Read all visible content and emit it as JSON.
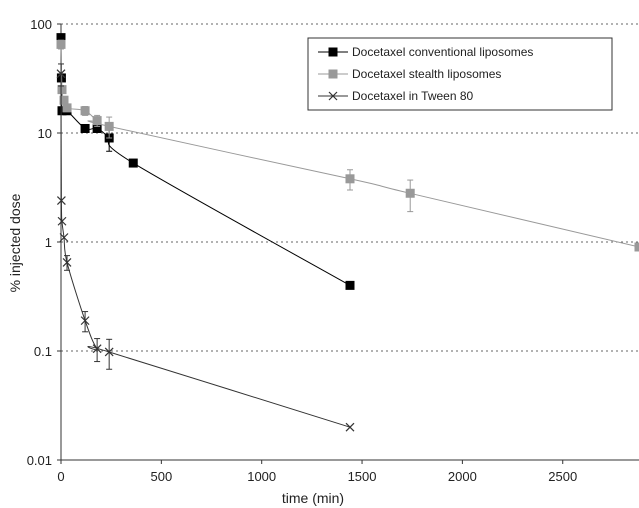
{
  "chart_data": {
    "type": "scatter",
    "xlabel": "time (min)",
    "ylabel": "% injected dose",
    "xlim": [
      0,
      2880
    ],
    "ylim": [
      0.01,
      100
    ],
    "y_scale": "log",
    "x_ticks": [
      "0",
      "500",
      "1000",
      "1500",
      "2000",
      "2500"
    ],
    "x_tick_values": [
      0,
      500,
      1000,
      1500,
      2000,
      2500
    ],
    "y_ticks": [
      "0.01",
      "0.1",
      "1",
      "10",
      "100"
    ],
    "y_tick_values": [
      0.01,
      0.1,
      1,
      10,
      100
    ],
    "grid": "dotted horizontal lines at 0.1, 1, 10 and 100",
    "legend_position": "top-right",
    "series": [
      {
        "name": "Docetaxel conventional liposomes",
        "marker": "square",
        "color": "#000000",
        "points": [
          {
            "x": 0,
            "y": 75,
            "err": 5
          },
          {
            "x": 2,
            "y": 32
          },
          {
            "x": 5,
            "y": 16
          },
          {
            "x": 30,
            "y": 16
          },
          {
            "x": 120,
            "y": 11
          },
          {
            "x": 180,
            "y": 11
          },
          {
            "x": 240,
            "y": 9,
            "err": 2.2
          },
          {
            "x": 360,
            "y": 5.3
          },
          {
            "x": 1440,
            "y": 0.4
          }
        ]
      },
      {
        "name": "Docetaxel stealth liposomes",
        "marker": "square",
        "color": "#999999",
        "points": [
          {
            "x": 0,
            "y": 65,
            "err": 6
          },
          {
            "x": 5,
            "y": 25
          },
          {
            "x": 15,
            "y": 20
          },
          {
            "x": 30,
            "y": 17
          },
          {
            "x": 120,
            "y": 16,
            "err": 1.5
          },
          {
            "x": 180,
            "y": 13,
            "err": 1.5
          },
          {
            "x": 240,
            "y": 11.5,
            "err": 2.5
          },
          {
            "x": 1440,
            "y": 3.8,
            "err": 0.8
          },
          {
            "x": 1740,
            "y": 2.8,
            "err": 0.9
          },
          {
            "x": 2880,
            "y": 0.9
          }
        ]
      },
      {
        "name": "Docetaxel in Tween 80",
        "marker": "x",
        "color": "#333333",
        "points": [
          {
            "x": 0,
            "y": 35,
            "err": 8
          },
          {
            "x": 2,
            "y": 2.4
          },
          {
            "x": 5,
            "y": 1.55
          },
          {
            "x": 15,
            "y": 1.1
          },
          {
            "x": 30,
            "y": 0.65,
            "err": 0.1
          },
          {
            "x": 120,
            "y": 0.19,
            "err": 0.04
          },
          {
            "x": 180,
            "y": 0.105,
            "err": 0.025
          },
          {
            "x": 240,
            "y": 0.098,
            "err": 0.03
          },
          {
            "x": 1440,
            "y": 0.02
          }
        ]
      }
    ]
  }
}
